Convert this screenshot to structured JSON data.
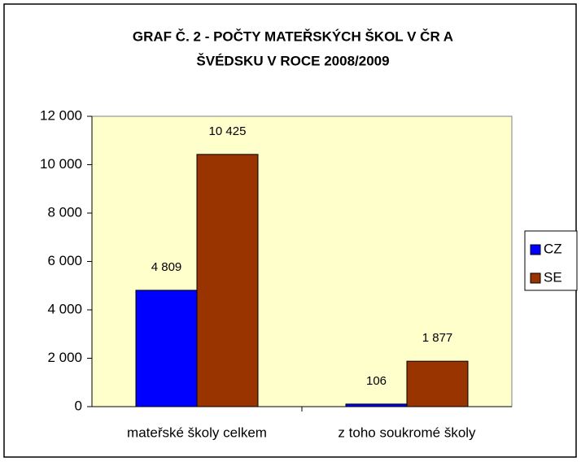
{
  "chart_data": {
    "type": "bar",
    "title": [
      "GRAF Č. 2 - POČTY MATEŘSKÝCH ŠKOL V ČR A",
      "ŠVÉDSKU V ROCE 2008/2009"
    ],
    "categories": [
      "mateřské školy celkem",
      "z toho soukromé školy"
    ],
    "series": [
      {
        "name": "CZ",
        "color": "#0000ff",
        "values": [
          4809,
          106
        ],
        "value_labels": [
          "4 809",
          "106"
        ]
      },
      {
        "name": "SE",
        "color": "#993300",
        "values": [
          10425,
          1877
        ],
        "value_labels": [
          "10 425",
          "1 877"
        ]
      }
    ],
    "ylim": [
      0,
      12000
    ],
    "yticks": [
      0,
      {
        "value": 2000,
        "label": "2 000"
      },
      {
        "value": 4000,
        "label": "4 000"
      },
      {
        "value": 6000,
        "label": "6 000"
      },
      {
        "value": 8000,
        "label": "8 000"
      },
      {
        "value": 10000,
        "label": "10 000"
      },
      {
        "value": 12000,
        "label": "12 000"
      }
    ],
    "plot_background": "#ffffcc",
    "legend": "right"
  }
}
